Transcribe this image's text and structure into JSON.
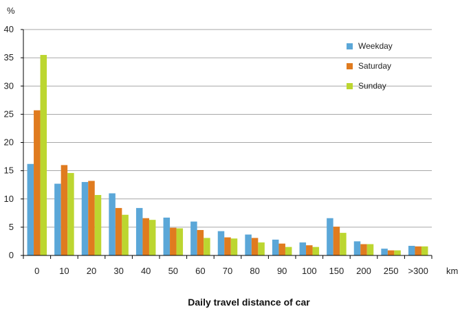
{
  "chart_data": {
    "type": "bar",
    "title": "",
    "ylabel": "%",
    "xunit": "km",
    "xlabel": "Daily travel distance of car",
    "ylim": [
      0,
      40
    ],
    "yticks": [
      0,
      5,
      10,
      15,
      20,
      25,
      30,
      35,
      40
    ],
    "grid": true,
    "legend_position": "top-right",
    "categories": [
      "0",
      "10",
      "20",
      "30",
      "40",
      "50",
      "60",
      "70",
      "80",
      "90",
      "100",
      "150",
      "200",
      "250",
      ">300"
    ],
    "series": [
      {
        "name": "Weekday",
        "color": "#5ba7d8",
        "values": [
          16.2,
          12.7,
          13.0,
          11.0,
          8.4,
          6.7,
          6.0,
          4.3,
          3.7,
          2.8,
          2.3,
          6.6,
          2.5,
          1.2,
          1.7
        ]
      },
      {
        "name": "Saturday",
        "color": "#e07b1f",
        "values": [
          25.7,
          16.0,
          13.2,
          8.4,
          6.6,
          4.9,
          4.5,
          3.2,
          3.1,
          2.1,
          1.8,
          5.1,
          2.0,
          0.9,
          1.6
        ]
      },
      {
        "name": "Sunday",
        "color": "#bcd630",
        "values": [
          35.5,
          14.6,
          10.7,
          7.2,
          6.3,
          4.8,
          3.1,
          3.0,
          2.3,
          1.5,
          1.5,
          4.0,
          2.0,
          0.9,
          1.6
        ]
      }
    ]
  }
}
